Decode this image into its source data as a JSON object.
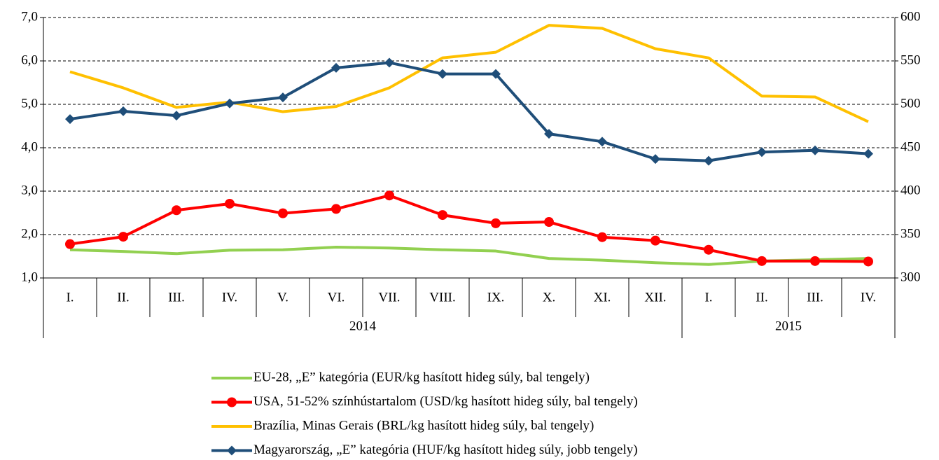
{
  "chart_data": {
    "type": "line",
    "categories": [
      "I.",
      "II.",
      "III.",
      "IV.",
      "V.",
      "VI.",
      "VII.",
      "VIII.",
      "IX.",
      "X.",
      "XI.",
      "XII.",
      "I.",
      "II.",
      "III.",
      "IV."
    ],
    "groups": [
      "2014",
      "2015"
    ],
    "ylim": [
      1,
      7
    ],
    "yticks": [
      {
        "value": 1,
        "label": "1,0"
      },
      {
        "value": 2,
        "label": "2,0"
      },
      {
        "value": 3,
        "label": "3,0"
      },
      {
        "value": 4,
        "label": "4,0"
      },
      {
        "value": 5,
        "label": "5,0"
      },
      {
        "value": 6,
        "label": "6,0"
      },
      {
        "value": 7,
        "label": "7,0"
      }
    ],
    "y2lim": [
      300,
      600
    ],
    "y2ticks": [
      300,
      350,
      400,
      450,
      500,
      550,
      600
    ],
    "grid": true,
    "series": [
      {
        "name": "EU-28, „E” kategória (EUR/kg hasított hideg súly, bal tengely)",
        "color": "#92d050",
        "marker": "none",
        "values": [
          1.65,
          1.61,
          1.56,
          1.64,
          1.65,
          1.71,
          1.69,
          1.65,
          1.62,
          1.45,
          1.41,
          1.35,
          1.31,
          1.39,
          1.42,
          1.45
        ]
      },
      {
        "name": "USA, 51-52% színhústartalom (USD/kg hasított hideg súly, bal tengely)",
        "color": "#ff0000",
        "marker": "circle",
        "values": [
          1.78,
          1.95,
          2.56,
          2.71,
          2.49,
          2.59,
          2.9,
          2.45,
          2.26,
          2.29,
          1.94,
          1.86,
          1.65,
          1.39,
          1.39,
          1.38
        ]
      },
      {
        "name": "Brazília, Minas Gerais (BRL/kg hasított hideg súly, bal tengely)",
        "color": "#ffc000",
        "marker": "none",
        "values": [
          5.75,
          5.38,
          4.93,
          5.05,
          4.83,
          4.95,
          5.38,
          6.07,
          6.2,
          6.82,
          6.75,
          6.28,
          6.07,
          5.19,
          5.17,
          4.6
        ]
      },
      {
        "name": "Magyarország, „E” kategória (HUF/kg hasított hideg súly, jobb tengely)",
        "color": "#1f4e79",
        "marker": "diamond",
        "axis": "y2",
        "values": [
          483,
          492,
          487,
          501,
          508,
          542,
          548,
          535,
          535,
          466,
          457,
          437,
          435,
          445,
          447,
          443
        ]
      }
    ]
  }
}
